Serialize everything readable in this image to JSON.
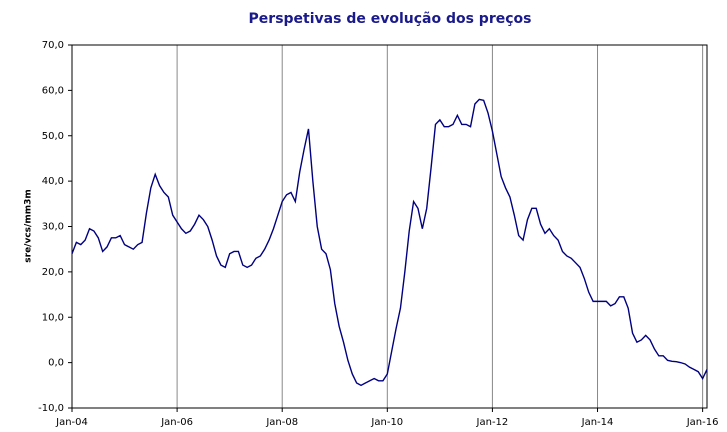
{
  "chart_data": {
    "type": "line",
    "title": "Perspetivas de evolução dos preços",
    "y_label": "sre/vcs/mm3m",
    "x": [
      "2004-01",
      "2004-02",
      "2004-03",
      "2004-04",
      "2004-05",
      "2004-06",
      "2004-07",
      "2004-08",
      "2004-09",
      "2004-10",
      "2004-11",
      "2004-12",
      "2005-01",
      "2005-02",
      "2005-03",
      "2005-04",
      "2005-05",
      "2005-06",
      "2005-07",
      "2005-08",
      "2005-09",
      "2005-10",
      "2005-11",
      "2005-12",
      "2006-01",
      "2006-02",
      "2006-03",
      "2006-04",
      "2006-05",
      "2006-06",
      "2006-07",
      "2006-08",
      "2006-09",
      "2006-10",
      "2006-11",
      "2006-12",
      "2007-01",
      "2007-02",
      "2007-03",
      "2007-04",
      "2007-05",
      "2007-06",
      "2007-07",
      "2007-08",
      "2007-09",
      "2007-10",
      "2007-11",
      "2007-12",
      "2008-01",
      "2008-02",
      "2008-03",
      "2008-04",
      "2008-05",
      "2008-06",
      "2008-07",
      "2008-08",
      "2008-09",
      "2008-10",
      "2008-11",
      "2008-12",
      "2009-01",
      "2009-02",
      "2009-03",
      "2009-04",
      "2009-05",
      "2009-06",
      "2009-07",
      "2009-08",
      "2009-09",
      "2009-10",
      "2009-11",
      "2009-12",
      "2010-01",
      "2010-02",
      "2010-03",
      "2010-04",
      "2010-05",
      "2010-06",
      "2010-07",
      "2010-08",
      "2010-09",
      "2010-10",
      "2010-11",
      "2010-12",
      "2011-01",
      "2011-02",
      "2011-03",
      "2011-04",
      "2011-05",
      "2011-06",
      "2011-07",
      "2011-08",
      "2011-09",
      "2011-10",
      "2011-11",
      "2011-12",
      "2012-01",
      "2012-02",
      "2012-03",
      "2012-04",
      "2012-05",
      "2012-06",
      "2012-07",
      "2012-08",
      "2012-09",
      "2012-10",
      "2012-11",
      "2012-12",
      "2013-01",
      "2013-02",
      "2013-03",
      "2013-04",
      "2013-05",
      "2013-06",
      "2013-07",
      "2013-08",
      "2013-09",
      "2013-10",
      "2013-11",
      "2013-12",
      "2014-01",
      "2014-02",
      "2014-03",
      "2014-04",
      "2014-05",
      "2014-06",
      "2014-07",
      "2014-08",
      "2014-09",
      "2014-10",
      "2014-11",
      "2014-12",
      "2015-01",
      "2015-02",
      "2015-03",
      "2015-04",
      "2015-05",
      "2015-06",
      "2015-07",
      "2015-08",
      "2015-09",
      "2015-10",
      "2015-11",
      "2015-12",
      "2016-01",
      "2016-02"
    ],
    "series": [
      {
        "color": "#000080",
        "values": [
          24,
          26.5,
          26,
          27,
          29.5,
          29,
          27.5,
          24.5,
          25.5,
          27.5,
          27.5,
          28,
          26,
          25.5,
          25,
          26,
          26.5,
          33,
          38.5,
          41.5,
          39,
          37.5,
          36.5,
          32.5,
          31,
          29.5,
          28.5,
          29,
          30.5,
          32.5,
          31.5,
          30,
          27,
          23.5,
          21.5,
          21,
          24,
          24.5,
          24.5,
          21.5,
          21,
          21.5,
          23,
          23.5,
          25,
          27,
          29.5,
          32.5,
          35.5,
          37,
          37.5,
          35.5,
          42,
          47,
          51.5,
          40,
          30,
          25,
          24,
          20.5,
          13,
          8,
          4.5,
          0.5,
          -2.5,
          -4.5,
          -5,
          -4.5,
          -4,
          -3.5,
          -4,
          -4,
          -2.5,
          2.5,
          7.5,
          12,
          20,
          29,
          35.5,
          34,
          29.5,
          34,
          43,
          52.5,
          53.5,
          52,
          52,
          52.5,
          54.5,
          52.5,
          52.5,
          52,
          57,
          58,
          57.8,
          55,
          51,
          46,
          41,
          38.5,
          36.5,
          32.5,
          28,
          27,
          31.5,
          34,
          34,
          30.5,
          28.5,
          29.5,
          28,
          27,
          24.5,
          23.5,
          23,
          22,
          21,
          18.5,
          15.5,
          13.5,
          13.5,
          13.5,
          13.5,
          12.5,
          13,
          14.5,
          14.5,
          12,
          6.5,
          4.5,
          5,
          6,
          5,
          3,
          1.5,
          1.5,
          0.5,
          0.3,
          0.2,
          0,
          -0.3,
          -1,
          -1.5,
          -2,
          -3.5,
          -1.5
        ]
      }
    ],
    "xlim": [
      "2004-01",
      "2016-02"
    ],
    "xticks": [
      {
        "value": "2004-01",
        "label": "Jan-04"
      },
      {
        "value": "2006-01",
        "label": "Jan-06"
      },
      {
        "value": "2008-01",
        "label": "Jan-08"
      },
      {
        "value": "2010-01",
        "label": "Jan-10"
      },
      {
        "value": "2012-01",
        "label": "Jan-12"
      },
      {
        "value": "2014-01",
        "label": "Jan-14"
      },
      {
        "value": "2016-01",
        "label": "Jan-16"
      }
    ],
    "ylim": [
      -10,
      70
    ],
    "yticks": [
      {
        "value": -10,
        "label": "-10,0"
      },
      {
        "value": 0,
        "label": "0,0"
      },
      {
        "value": 10,
        "label": "10,0"
      },
      {
        "value": 20,
        "label": "20,0"
      },
      {
        "value": 30,
        "label": "30,0"
      },
      {
        "value": 40,
        "label": "40,0"
      },
      {
        "value": 50,
        "label": "50,0"
      },
      {
        "value": 60,
        "label": "60,0"
      },
      {
        "value": 70,
        "label": "70,0"
      }
    ],
    "x_grid": true
  }
}
